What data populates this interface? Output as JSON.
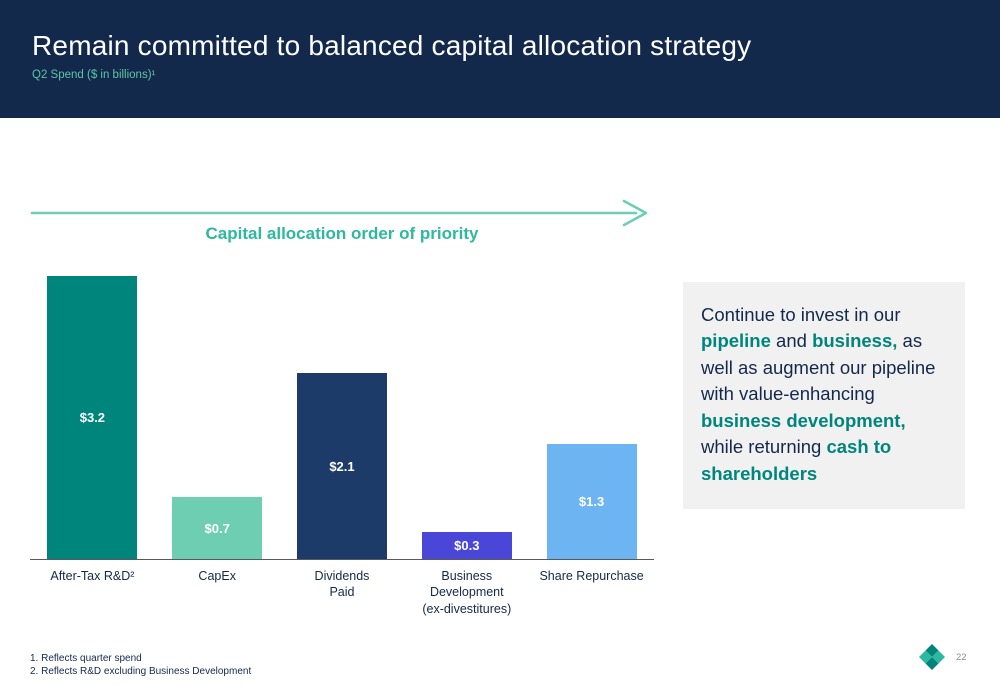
{
  "header": {
    "title": "Remain committed to balanced capital allocation strategy",
    "subtitle": "Q2 Spend ($ in billions)¹"
  },
  "priority_arrow": {
    "label": "Capital allocation order of priority"
  },
  "chart_data": {
    "type": "bar",
    "title": "Q2 Spend ($ in billions)",
    "categories": [
      "After-Tax R&D²",
      "CapEx",
      "Dividends\nPaid",
      "Business\nDevelopment\n(ex-divestitures)",
      "Share Repurchase"
    ],
    "values": [
      3.2,
      0.7,
      2.1,
      0.3,
      1.3
    ],
    "value_labels": [
      "$3.2",
      "$0.7",
      "$2.1",
      "$0.3",
      "$1.3"
    ],
    "bar_colors": [
      "#00857c",
      "#6eceb2",
      "#1c3b68",
      "#4a46d8",
      "#6db5f2"
    ],
    "ylim": [
      0,
      3.5
    ],
    "unit": "$ in billions",
    "grid": false,
    "legend": "none"
  },
  "callout": {
    "segments": [
      {
        "text": "Continue to invest in our ",
        "emphasis": false
      },
      {
        "text": "pipeline",
        "emphasis": true
      },
      {
        "text": " and ",
        "emphasis": false
      },
      {
        "text": "business,",
        "emphasis": true
      },
      {
        "text": " as well as augment our pipeline with value-enhancing ",
        "emphasis": false
      },
      {
        "text": "business development,",
        "emphasis": true
      },
      {
        "text": " while returning ",
        "emphasis": false
      },
      {
        "text": "cash to shareholders",
        "emphasis": true
      }
    ]
  },
  "footnotes": [
    "1. Reflects quarter spend",
    "2. Reflects R&D excluding Business Development"
  ],
  "page_number": "22",
  "colors": {
    "header_bg": "#13294b",
    "accent_teal": "#00857c",
    "arrow_teal": "#6eceb2",
    "priority_label_teal": "#2cb9a0",
    "callout_bg": "#f1f1f2"
  }
}
